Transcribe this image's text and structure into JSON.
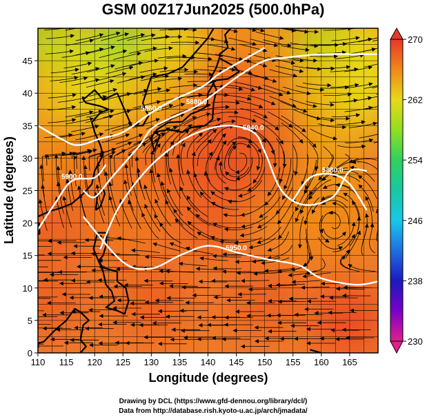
{
  "title": "GSM 00Z17Jun2025 (500.0hPa)",
  "credits": {
    "line1": "Drawing by DCL (https://www.gfd-dennou.org/library/dcl/)",
    "line2": "Data from http://database.rish.kyoto-u.ac.jp/arch/jmadata/"
  },
  "colorbar": {
    "min": 230,
    "max": 270,
    "tick_labels": [
      "270",
      "262",
      "254",
      "246",
      "238",
      "230"
    ],
    "tick_values": [
      270,
      262,
      254,
      246,
      238,
      230
    ],
    "stops": [
      {
        "value": 230,
        "color": "#e0208c"
      },
      {
        "value": 234,
        "color": "#7a00c8"
      },
      {
        "value": 238,
        "color": "#1a1ac0"
      },
      {
        "value": 242,
        "color": "#1f6fe0"
      },
      {
        "value": 246,
        "color": "#18c8e8"
      },
      {
        "value": 250,
        "color": "#18c8a0"
      },
      {
        "value": 254,
        "color": "#30d060"
      },
      {
        "value": 258,
        "color": "#90e020"
      },
      {
        "value": 262,
        "color": "#e8d818"
      },
      {
        "value": 266,
        "color": "#f08818"
      },
      {
        "value": 270,
        "color": "#e83828"
      }
    ]
  },
  "chart_data": {
    "type": "heatmap",
    "title": "GSM 00Z17Jun2025 (500.0hPa)",
    "xlabel": "Longitude (degrees)",
    "ylabel": "Latitude  (degrees)",
    "xlim": [
      110,
      170
    ],
    "ylim": [
      0,
      50
    ],
    "x_ticks": [
      110,
      115,
      120,
      125,
      130,
      135,
      140,
      145,
      150,
      155,
      160,
      165
    ],
    "y_ticks": [
      0,
      5,
      10,
      15,
      20,
      25,
      30,
      35,
      40,
      45
    ],
    "x_tick_labels": [
      "110",
      "115",
      "120",
      "125",
      "130",
      "135",
      "140",
      "145",
      "150",
      "155",
      "160",
      "165"
    ],
    "y_tick_labels": [
      "0",
      "5",
      "10",
      "15",
      "20",
      "25",
      "30",
      "35",
      "40",
      "45"
    ],
    "grid": true,
    "field": "temperature shading with wind streamlines",
    "contours": [
      {
        "label": "5880.0",
        "points": [
          [
            118,
            25
          ],
          [
            120,
            24
          ],
          [
            123,
            27
          ],
          [
            126,
            30
          ],
          [
            128,
            32
          ],
          [
            130,
            34.5
          ],
          [
            133,
            36
          ],
          [
            138,
            38
          ],
          [
            142,
            40.5
          ],
          [
            146,
            43
          ],
          [
            150,
            45
          ],
          [
            154,
            45.5
          ],
          [
            160,
            46
          ],
          [
            166,
            46
          ],
          [
            170,
            46
          ]
        ]
      },
      {
        "label": "5860.0",
        "points": [
          [
            110,
            35
          ],
          [
            114,
            33
          ],
          [
            117,
            32
          ],
          [
            121,
            33
          ],
          [
            125,
            34
          ],
          [
            130,
            37
          ],
          [
            134,
            39
          ],
          [
            139,
            41
          ],
          [
            142,
            43
          ],
          [
            146,
            45
          ],
          [
            150,
            47
          ]
        ]
      },
      {
        "label": "5940.0",
        "points": [
          [
            121,
            16
          ],
          [
            124,
            22
          ],
          [
            128,
            27
          ],
          [
            132,
            30.5
          ],
          [
            137,
            33.5
          ],
          [
            143,
            35
          ],
          [
            148,
            34
          ],
          [
            150,
            31
          ],
          [
            153,
            25
          ],
          [
            157,
            22.8
          ],
          [
            162,
            24
          ],
          [
            165,
            28
          ],
          [
            168,
            28
          ]
        ]
      },
      {
        "label": "5900.0",
        "points": [
          [
            110,
            19
          ],
          [
            113,
            23
          ],
          [
            116,
            26.5
          ],
          [
            120,
            27
          ],
          [
            122,
            29
          ]
        ]
      },
      {
        "label": "5950.0",
        "points": [
          [
            118,
            21
          ],
          [
            125,
            14
          ],
          [
            130,
            13
          ],
          [
            135,
            15
          ],
          [
            140,
            16.5
          ],
          [
            145,
            15.5
          ],
          [
            150,
            14.5
          ],
          [
            156,
            13.5
          ],
          [
            160,
            11.5
          ],
          [
            166,
            10.5
          ],
          [
            170,
            11
          ]
        ]
      },
      {
        "label": "5880.0",
        "points": [
          [
            155,
            23.5
          ],
          [
            158,
            27
          ],
          [
            162,
            27.5
          ],
          [
            165,
            26
          ],
          [
            168,
            22
          ]
        ]
      }
    ],
    "temperature_field": [
      {
        "lon": 112,
        "lat": 47,
        "value": 259
      },
      {
        "lon": 120,
        "lat": 47,
        "value": 261
      },
      {
        "lon": 127,
        "lat": 47,
        "value": 257
      },
      {
        "lon": 134,
        "lat": 47,
        "value": 262
      },
      {
        "lon": 145,
        "lat": 47,
        "value": 266
      },
      {
        "lon": 152,
        "lat": 47,
        "value": 265
      },
      {
        "lon": 162,
        "lat": 47,
        "value": 259
      },
      {
        "lon": 168,
        "lat": 47,
        "value": 262
      },
      {
        "lon": 112,
        "lat": 40,
        "value": 264
      },
      {
        "lon": 120,
        "lat": 40,
        "value": 262
      },
      {
        "lon": 130,
        "lat": 40,
        "value": 264
      },
      {
        "lon": 142,
        "lat": 40,
        "value": 268
      },
      {
        "lon": 150,
        "lat": 40,
        "value": 268
      },
      {
        "lon": 160,
        "lat": 40,
        "value": 264
      },
      {
        "lon": 168,
        "lat": 40,
        "value": 262
      },
      {
        "lon": 112,
        "lat": 30,
        "value": 266
      },
      {
        "lon": 122,
        "lat": 30,
        "value": 267
      },
      {
        "lon": 135,
        "lat": 30,
        "value": 268
      },
      {
        "lon": 145,
        "lat": 30,
        "value": 269
      },
      {
        "lon": 152,
        "lat": 30,
        "value": 268
      },
      {
        "lon": 162,
        "lat": 30,
        "value": 265
      },
      {
        "lon": 112,
        "lat": 20,
        "value": 268
      },
      {
        "lon": 125,
        "lat": 20,
        "value": 267
      },
      {
        "lon": 140,
        "lat": 20,
        "value": 268
      },
      {
        "lon": 155,
        "lat": 20,
        "value": 266
      },
      {
        "lon": 165,
        "lat": 20,
        "value": 266
      },
      {
        "lon": 112,
        "lat": 8,
        "value": 268
      },
      {
        "lon": 130,
        "lat": 8,
        "value": 268
      },
      {
        "lon": 150,
        "lat": 8,
        "value": 268
      },
      {
        "lon": 165,
        "lat": 5,
        "value": 269
      }
    ]
  }
}
